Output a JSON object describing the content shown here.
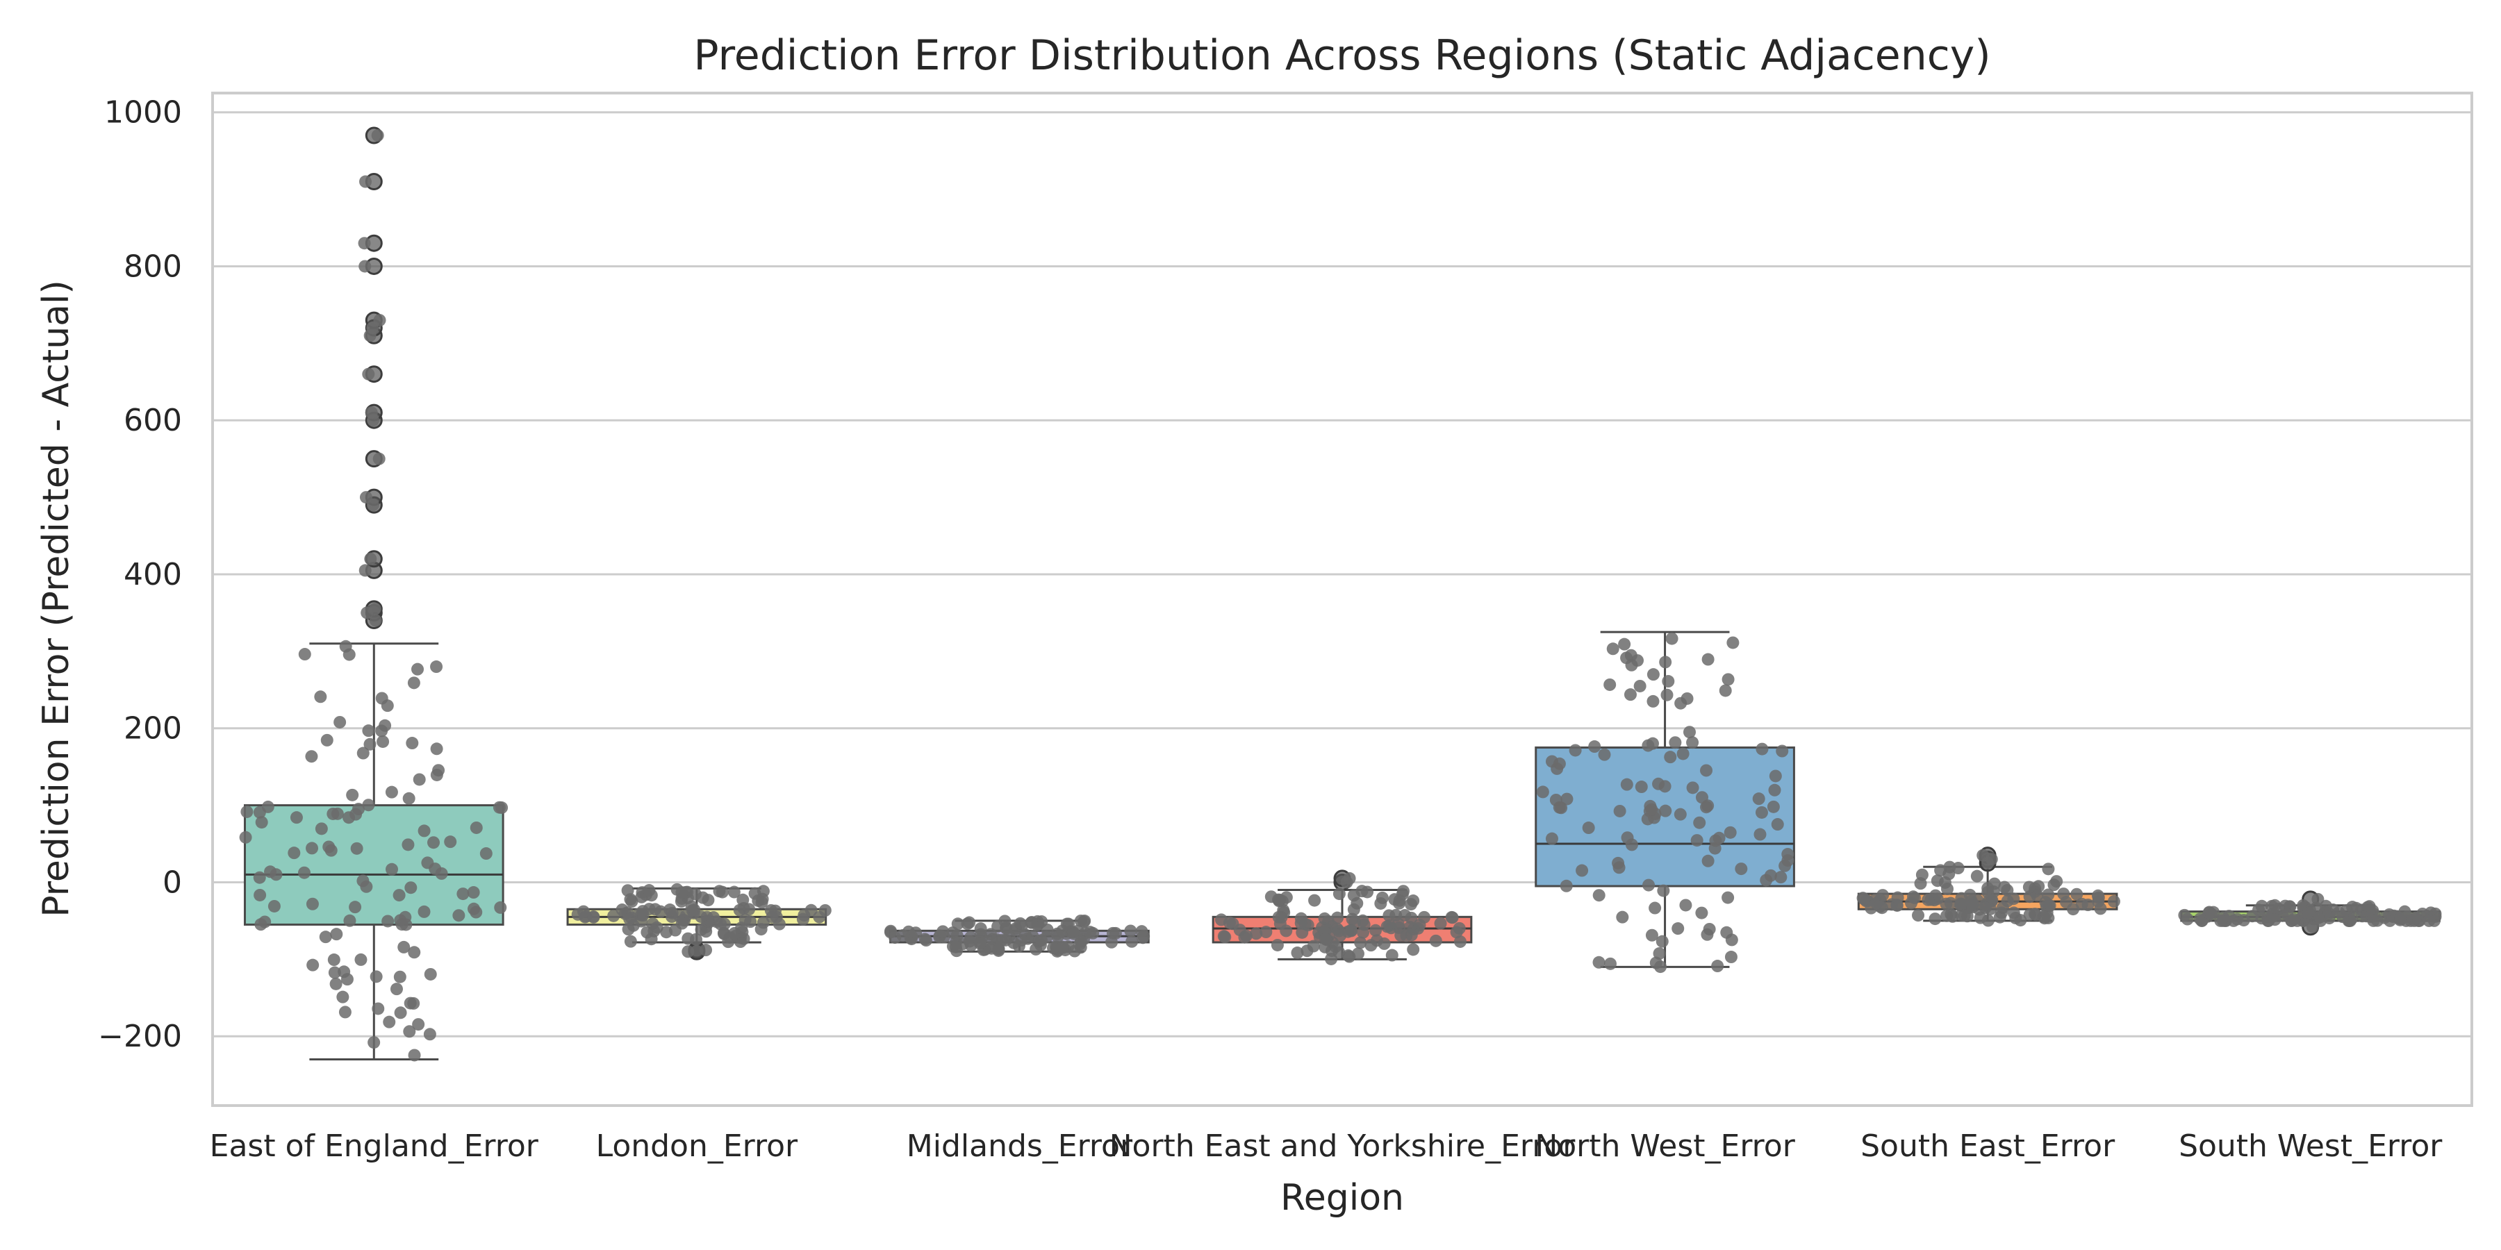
{
  "chart_data": {
    "type": "box",
    "title": "Prediction Error Distribution Across Regions (Static Adjacency)",
    "xlabel": "Region",
    "ylabel": "Prediction Error (Predicted - Actual)",
    "ylim": [
      -290,
      1025
    ],
    "yticks": [
      -200,
      0,
      200,
      400,
      600,
      800,
      1000
    ],
    "ytick_labels": [
      "−200",
      "0",
      "200",
      "400",
      "600",
      "800",
      "1000"
    ],
    "grid": true,
    "categories": [
      "East of England_Error",
      "London_Error",
      "Midlands_Error",
      "North East and Yorkshire_Error",
      "North West_Error",
      "South East_Error",
      "South West_Error"
    ],
    "box_colors": [
      "#8ecbbd",
      "#f0ef9e",
      "#b7b4d3",
      "#ef7f72",
      "#7faed0",
      "#f4a560",
      "#a8d36a"
    ],
    "series": [
      {
        "q1": -55,
        "median": 10,
        "q3": 100,
        "whisker_low": -230,
        "whisker_high": 310,
        "min": -230,
        "max": 970,
        "outliers": [
          340,
          350,
          355,
          405,
          420,
          490,
          500,
          550,
          600,
          610,
          660,
          710,
          720,
          730,
          800,
          830,
          910,
          970
        ]
      },
      {
        "q1": -55,
        "median": -45,
        "q3": -35,
        "whisker_low": -78,
        "whisker_high": -8,
        "min": -90,
        "max": -8,
        "outliers": [
          -88,
          -90
        ]
      },
      {
        "q1": -78,
        "median": -70,
        "q3": -63,
        "whisker_low": -90,
        "whisker_high": -50,
        "min": -90,
        "max": -50,
        "outliers": []
      },
      {
        "q1": -78,
        "median": -60,
        "q3": -45,
        "whisker_low": -100,
        "whisker_high": -10,
        "min": -100,
        "max": 5,
        "outliers": [
          0,
          5
        ]
      },
      {
        "q1": -5,
        "median": 50,
        "q3": 175,
        "whisker_low": -110,
        "whisker_high": 325,
        "min": -110,
        "max": 325,
        "outliers": []
      },
      {
        "q1": -35,
        "median": -25,
        "q3": -15,
        "whisker_low": -50,
        "whisker_high": 20,
        "min": -50,
        "max": 35,
        "outliers": [
          25,
          30,
          35
        ]
      },
      {
        "q1": -50,
        "median": -45,
        "q3": -38,
        "whisker_low": -50,
        "whisker_high": -30,
        "min": -58,
        "max": -22,
        "outliers": [
          -22,
          -58
        ]
      }
    ]
  }
}
